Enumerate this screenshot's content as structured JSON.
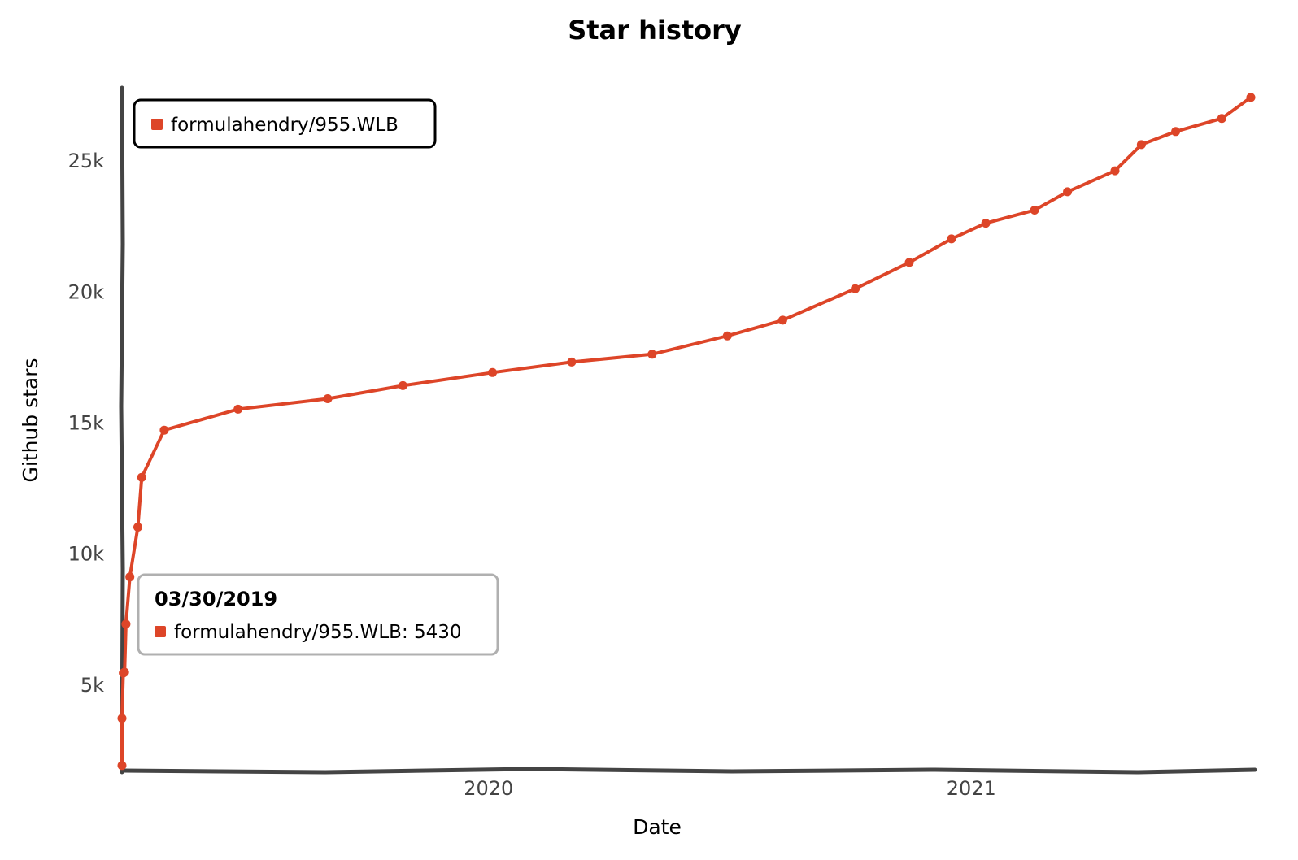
{
  "chart_data": {
    "type": "line",
    "title": "Star history",
    "xlabel": "Date",
    "ylabel": "Github stars",
    "x_ticks": [
      "2020",
      "2021"
    ],
    "y_ticks": [
      {
        "value": 5000,
        "label": "5k"
      },
      {
        "value": 10000,
        "label": "10k"
      },
      {
        "value": 15000,
        "label": "15k"
      },
      {
        "value": 20000,
        "label": "20k"
      },
      {
        "value": 25000,
        "label": "25k"
      }
    ],
    "xlim": [
      "2019-03-29",
      "2021-08-01"
    ],
    "ylim": [
      1800,
      27800
    ],
    "grid": false,
    "legend_position": "top-left",
    "series": [
      {
        "name": "formulahendry/955.WLB",
        "color": "#dd4528",
        "points": [
          {
            "date": "2019-03-29",
            "stars": 1900
          },
          {
            "date": "2019-03-29",
            "stars": 3700
          },
          {
            "date": "2019-03-30",
            "stars": 5430
          },
          {
            "date": "2019-03-31",
            "stars": 5460
          },
          {
            "date": "2019-04-01",
            "stars": 7300
          },
          {
            "date": "2019-04-04",
            "stars": 9100
          },
          {
            "date": "2019-04-10",
            "stars": 11000
          },
          {
            "date": "2019-04-13",
            "stars": 12900
          },
          {
            "date": "2019-04-30",
            "stars": 14700
          },
          {
            "date": "2019-06-25",
            "stars": 15500
          },
          {
            "date": "2019-09-01",
            "stars": 15900
          },
          {
            "date": "2019-10-28",
            "stars": 16400
          },
          {
            "date": "2020-01-04",
            "stars": 16900
          },
          {
            "date": "2020-03-04",
            "stars": 17300
          },
          {
            "date": "2020-05-04",
            "stars": 17600
          },
          {
            "date": "2020-06-30",
            "stars": 18300
          },
          {
            "date": "2020-08-11",
            "stars": 18900
          },
          {
            "date": "2020-10-05",
            "stars": 20100
          },
          {
            "date": "2020-11-15",
            "stars": 21100
          },
          {
            "date": "2020-12-17",
            "stars": 22000
          },
          {
            "date": "2021-01-12",
            "stars": 22600
          },
          {
            "date": "2021-02-18",
            "stars": 23100
          },
          {
            "date": "2021-03-15",
            "stars": 23800
          },
          {
            "date": "2021-04-20",
            "stars": 24600
          },
          {
            "date": "2021-05-10",
            "stars": 25600
          },
          {
            "date": "2021-06-05",
            "stars": 26100
          },
          {
            "date": "2021-07-10",
            "stars": 26600
          },
          {
            "date": "2021-08-01",
            "stars": 27400
          }
        ]
      }
    ],
    "tooltip": {
      "date": "03/30/2019",
      "text": "formulahendry/955.WLB: 5430"
    }
  },
  "colors": {
    "series": "#dd4528",
    "axis": "#444444",
    "tooltip_border": "#b0b0b0"
  }
}
